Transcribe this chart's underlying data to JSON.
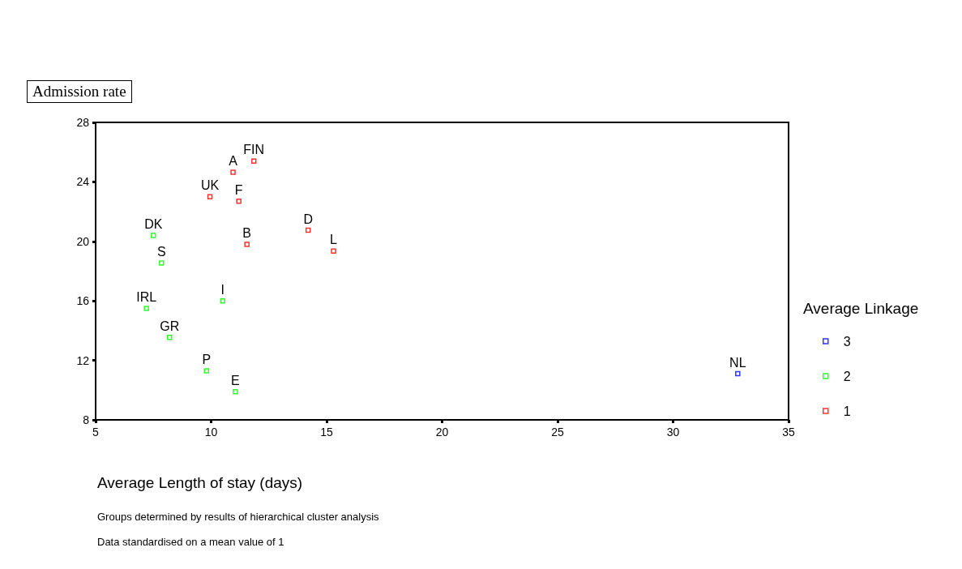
{
  "chart_data": {
    "type": "scatter",
    "ylabel": "Admission rate",
    "xlabel": "Average Length of stay (days)",
    "legend_title": "Average Linkage",
    "legend": "right",
    "grid": false,
    "marker": "square",
    "xlim": [
      5,
      35
    ],
    "xticks": [
      5,
      10,
      15,
      20,
      25,
      30,
      35
    ],
    "ylim": [
      8,
      28
    ],
    "yticks": [
      8,
      12,
      16,
      20,
      24,
      28
    ],
    "series": [
      {
        "name": "3",
        "color": "#0000ff",
        "x": [
          32.8
        ],
        "values": [
          11.1
        ]
      },
      {
        "name": "2",
        "color": "#00ff00",
        "x": [
          7.5,
          7.85,
          10.5,
          7.2,
          8.2,
          9.8,
          11.05
        ],
        "values": [
          20.4,
          18.55,
          16.0,
          15.5,
          13.55,
          11.3,
          9.9
        ]
      },
      {
        "name": "1",
        "color": "#ff0000",
        "x": [
          10.95,
          11.85,
          9.95,
          11.2,
          14.2,
          11.55,
          15.3
        ],
        "values": [
          24.65,
          25.4,
          23.0,
          22.7,
          20.75,
          19.8,
          19.35
        ]
      }
    ],
    "annotations": [
      {
        "text": "NL",
        "x": 32.8,
        "y": 11.1
      },
      {
        "text": "DK",
        "x": 7.5,
        "y": 20.4
      },
      {
        "text": "S",
        "x": 7.85,
        "y": 18.55
      },
      {
        "text": "I",
        "x": 10.5,
        "y": 16.0
      },
      {
        "text": "IRL",
        "x": 7.2,
        "y": 15.5
      },
      {
        "text": "GR",
        "x": 8.2,
        "y": 13.55
      },
      {
        "text": "P",
        "x": 9.8,
        "y": 11.3
      },
      {
        "text": "E",
        "x": 11.05,
        "y": 9.9
      },
      {
        "text": "A",
        "x": 10.95,
        "y": 24.65
      },
      {
        "text": "FIN",
        "x": 11.85,
        "y": 25.4
      },
      {
        "text": "UK",
        "x": 9.95,
        "y": 23.0
      },
      {
        "text": "F",
        "x": 11.2,
        "y": 22.7
      },
      {
        "text": "D",
        "x": 14.2,
        "y": 20.75
      },
      {
        "text": "B",
        "x": 11.55,
        "y": 19.8
      },
      {
        "text": "L",
        "x": 15.3,
        "y": 19.35
      },
      "Groups determined by results of hierarchical cluster analysis",
      "Data standardised on a mean value of 1"
    ]
  }
}
